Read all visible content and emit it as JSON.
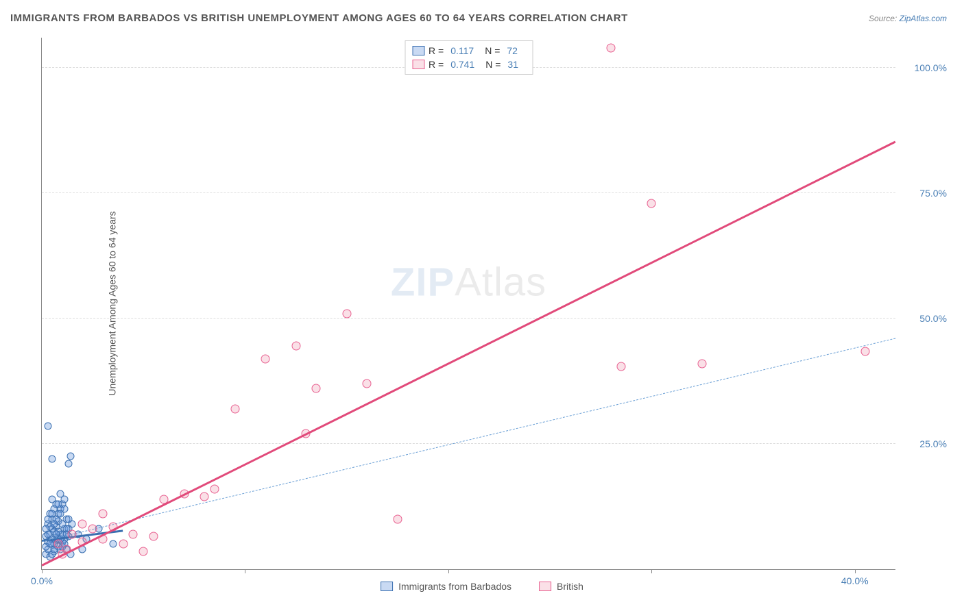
{
  "title": "IMMIGRANTS FROM BARBADOS VS BRITISH UNEMPLOYMENT AMONG AGES 60 TO 64 YEARS CORRELATION CHART",
  "source_label": "Source:",
  "source_site": "ZipAtlas.com",
  "y_axis_label": "Unemployment Among Ages 60 to 64 years",
  "watermark_a": "ZIP",
  "watermark_b": "Atlas",
  "chart": {
    "type": "scatter",
    "xlim": [
      0,
      42
    ],
    "ylim": [
      0,
      106
    ],
    "x_ticks": [
      0,
      10,
      20,
      30,
      40
    ],
    "x_tick_labels": [
      "0.0%",
      "",
      "",
      "",
      "40.0%"
    ],
    "y_ticks": [
      25,
      50,
      75,
      100
    ],
    "y_tick_labels": [
      "25.0%",
      "50.0%",
      "75.0%",
      "100.0%"
    ],
    "grid_color": "#dddddd",
    "axis_color": "#888888",
    "background_color": "#ffffff",
    "series": [
      {
        "name": "Immigrants from Barbados",
        "color_fill": "rgba(100,150,220,0.35)",
        "color_stroke": "#3a6fb0",
        "marker_size": 11,
        "R": "0.117",
        "N": "72",
        "trend_solid": {
          "x1": 0,
          "y1": 5.5,
          "x2": 4,
          "y2": 7.5
        },
        "trend_dashed": {
          "x1": 0,
          "y1": 5.5,
          "x2": 42,
          "y2": 46
        },
        "points": [
          [
            0.2,
            3
          ],
          [
            0.3,
            4
          ],
          [
            0.4,
            2.5
          ],
          [
            0.5,
            5
          ],
          [
            0.6,
            3.5
          ],
          [
            0.7,
            6
          ],
          [
            0.8,
            4.5
          ],
          [
            0.9,
            7
          ],
          [
            1.0,
            5.5
          ],
          [
            1.1,
            8
          ],
          [
            1.2,
            4
          ],
          [
            1.3,
            6.5
          ],
          [
            1.4,
            3
          ],
          [
            1.5,
            9
          ],
          [
            0.5,
            10
          ],
          [
            0.6,
            12
          ],
          [
            0.7,
            8.5
          ],
          [
            0.8,
            11
          ],
          [
            1.0,
            13
          ],
          [
            1.2,
            10
          ],
          [
            0.4,
            7
          ],
          [
            0.3,
            9
          ],
          [
            0.6,
            5
          ],
          [
            0.9,
            4
          ],
          [
            1.1,
            6
          ],
          [
            1.3,
            8
          ],
          [
            0.2,
            6.5
          ],
          [
            0.5,
            8
          ],
          [
            0.8,
            9.5
          ],
          [
            1.0,
            7
          ],
          [
            0.4,
            11
          ],
          [
            0.7,
            13
          ],
          [
            0.9,
            15
          ],
          [
            1.1,
            14
          ],
          [
            0.3,
            5.5
          ],
          [
            0.6,
            7.5
          ],
          [
            0.5,
            3
          ],
          [
            0.8,
            6
          ],
          [
            1.0,
            4.5
          ],
          [
            0.4,
            8.5
          ],
          [
            0.7,
            10
          ],
          [
            0.9,
            12
          ],
          [
            1.2,
            8
          ],
          [
            0.2,
            4.5
          ],
          [
            0.5,
            6
          ],
          [
            0.8,
            7.5
          ],
          [
            1.1,
            5
          ],
          [
            0.3,
            7
          ],
          [
            0.6,
            9
          ],
          [
            0.9,
            11
          ],
          [
            1.3,
            10
          ],
          [
            0.4,
            5
          ],
          [
            0.7,
            7
          ],
          [
            1.0,
            9
          ],
          [
            0.2,
            8
          ],
          [
            0.5,
            11
          ],
          [
            0.8,
            13
          ],
          [
            1.1,
            12
          ],
          [
            0.6,
            4
          ],
          [
            0.9,
            6
          ],
          [
            1.2,
            7
          ],
          [
            0.3,
            10
          ],
          [
            0.5,
            14
          ],
          [
            0.5,
            22
          ],
          [
            0.3,
            28.5
          ],
          [
            1.3,
            21
          ],
          [
            1.4,
            22.5
          ],
          [
            2.8,
            8
          ],
          [
            2.2,
            6
          ],
          [
            3.5,
            5
          ],
          [
            2.0,
            4
          ],
          [
            1.8,
            7
          ]
        ]
      },
      {
        "name": "British",
        "color_fill": "rgba(235,130,160,0.25)",
        "color_stroke": "#e86090",
        "marker_size": 13,
        "R": "0.741",
        "N": "31",
        "trend_solid": {
          "x1": 0,
          "y1": 0.5,
          "x2": 42,
          "y2": 85
        },
        "points": [
          [
            0.8,
            5
          ],
          [
            1.2,
            4
          ],
          [
            1.5,
            7
          ],
          [
            2.0,
            5.5
          ],
          [
            2.5,
            8
          ],
          [
            3.0,
            6
          ],
          [
            3.5,
            8.5
          ],
          [
            4.0,
            5
          ],
          [
            4.5,
            7
          ],
          [
            5.0,
            3.5
          ],
          [
            5.5,
            6.5
          ],
          [
            6.0,
            14
          ],
          [
            7.0,
            15
          ],
          [
            8.0,
            14.5
          ],
          [
            8.5,
            16
          ],
          [
            9.5,
            32
          ],
          [
            11.0,
            42
          ],
          [
            12.5,
            44.5
          ],
          [
            13.0,
            27
          ],
          [
            13.5,
            36
          ],
          [
            15.0,
            51
          ],
          [
            16.0,
            37
          ],
          [
            17.5,
            10
          ],
          [
            28.5,
            40.5
          ],
          [
            30,
            73
          ],
          [
            32.5,
            41
          ],
          [
            28,
            104
          ],
          [
            40.5,
            43.5
          ],
          [
            2.0,
            9
          ],
          [
            3.0,
            11
          ],
          [
            1.0,
            3
          ]
        ]
      }
    ]
  },
  "legend_bottom": [
    {
      "label": "Immigrants from Barbados",
      "swatch": "blue"
    },
    {
      "label": "British",
      "swatch": "pink"
    }
  ]
}
